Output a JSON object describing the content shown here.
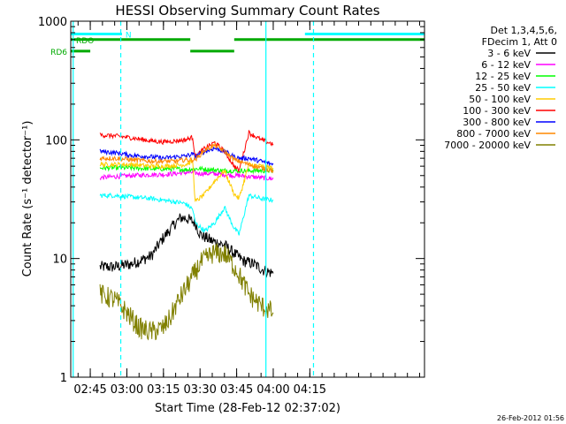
{
  "chart_data": {
    "type": "line",
    "title": "HESSI Observing Summary Count Rates",
    "xlabel": "Start Time (28-Feb-12 02:37:02)",
    "ylabel": "Count Rate (s⁻¹ detector⁻¹)",
    "y_scale": "log",
    "ylim": [
      1,
      1000
    ],
    "xlim_minutes": [
      37,
      182
    ],
    "x_ticks": [
      {
        "label": "02:45",
        "min": 45
      },
      {
        "label": "03:00",
        "min": 60
      },
      {
        "label": "03:15",
        "min": 75
      },
      {
        "label": "03:30",
        "min": 90
      },
      {
        "label": "03:45",
        "min": 105
      },
      {
        "label": "04:00",
        "min": 120
      },
      {
        "label": "04:15",
        "min": 135
      }
    ],
    "y_ticks": [
      {
        "label": "1",
        "value": 1
      },
      {
        "label": "10",
        "value": 10
      },
      {
        "label": "100",
        "value": 100
      },
      {
        "label": "1000",
        "value": 1000
      }
    ],
    "legend_header": [
      "Det 1,3,4,5,6,",
      "FDecim 1, Att 0"
    ],
    "legend_position": "outside-right",
    "series": [
      {
        "name": "3 - 6 keV",
        "color": "#000000",
        "x": [
          49,
          55,
          62,
          70,
          75,
          80,
          82,
          84,
          88,
          90,
          95,
          100,
          104,
          108,
          112,
          116,
          120
        ],
        "y": [
          8.5,
          8.5,
          9,
          10.5,
          15,
          20,
          22,
          22,
          20,
          16,
          14,
          13,
          11,
          9.5,
          9,
          8,
          7.5
        ]
      },
      {
        "name": "6 - 12 keV",
        "color": "#ff00ff",
        "x": [
          49,
          55,
          62,
          70,
          75,
          80,
          84,
          87,
          90,
          95,
          100,
          104,
          106,
          110,
          115,
          120
        ],
        "y": [
          48,
          49,
          50,
          51,
          51,
          52,
          53,
          53,
          52,
          52,
          51,
          50,
          50,
          49,
          48,
          47
        ]
      },
      {
        "name": "12 - 25 keV",
        "color": "#00ff00",
        "x": [
          49,
          55,
          62,
          70,
          75,
          80,
          84,
          87,
          90,
          95,
          100,
          104,
          106,
          110,
          115,
          120
        ],
        "y": [
          58,
          58,
          58,
          57,
          57,
          57,
          56,
          57,
          57,
          56,
          55,
          55,
          55,
          55,
          55,
          55
        ]
      },
      {
        "name": "25 - 50 keV",
        "color": "#00ffff",
        "x": [
          49,
          55,
          62,
          70,
          75,
          80,
          84,
          87,
          88,
          92,
          96,
          100,
          104,
          106,
          110,
          115,
          120
        ],
        "y": [
          34,
          34,
          33,
          32,
          31,
          30,
          29,
          26,
          20,
          17,
          20,
          27,
          18,
          16,
          34,
          32,
          31
        ]
      },
      {
        "name": "50 - 100 keV",
        "color": "#ffcc00",
        "x": [
          49,
          55,
          62,
          70,
          75,
          80,
          84,
          87,
          88,
          92,
          96,
          100,
          104,
          106,
          110,
          115,
          120
        ],
        "y": [
          62,
          62,
          62,
          60,
          60,
          61,
          62,
          66,
          30,
          35,
          45,
          55,
          35,
          32,
          62,
          60,
          58
        ]
      },
      {
        "name": "100 - 300 keV",
        "color": "#ff0000",
        "x": [
          49,
          55,
          62,
          70,
          75,
          80,
          84,
          87,
          88,
          92,
          96,
          100,
          104,
          106,
          110,
          115,
          120
        ],
        "y": [
          110,
          108,
          104,
          98,
          96,
          98,
          100,
          105,
          72,
          85,
          95,
          80,
          60,
          55,
          115,
          100,
          92
        ]
      },
      {
        "name": "300 - 800 keV",
        "color": "#0000ff",
        "x": [
          49,
          55,
          62,
          70,
          75,
          80,
          84,
          87,
          88,
          92,
          96,
          100,
          104,
          106,
          110,
          115,
          120
        ],
        "y": [
          80,
          78,
          74,
          72,
          70,
          72,
          73,
          76,
          72,
          80,
          85,
          80,
          72,
          70,
          70,
          66,
          62
        ]
      },
      {
        "name": "800 - 7000 keV",
        "color": "#ff8800",
        "x": [
          49,
          55,
          62,
          70,
          75,
          80,
          84,
          87,
          88,
          92,
          96,
          100,
          104,
          106,
          110,
          115,
          120
        ],
        "y": [
          70,
          70,
          68,
          66,
          66,
          66,
          68,
          68,
          68,
          82,
          90,
          80,
          68,
          66,
          62,
          58,
          55
        ]
      },
      {
        "name": "7000 - 20000 keV",
        "color": "#808000",
        "x": [
          49,
          55,
          60,
          65,
          70,
          75,
          78,
          80,
          85,
          90,
          95,
          100,
          105,
          110,
          115,
          120
        ],
        "y": [
          5,
          4.5,
          3.5,
          2.6,
          2.4,
          2.6,
          3.2,
          4,
          6,
          9,
          11,
          11,
          8,
          5,
          4,
          3.5
        ]
      }
    ],
    "flags": [
      {
        "name": "RDO",
        "color": "#00aa00",
        "segments": [
          [
            37,
            86
          ],
          [
            86,
            104
          ],
          [
            104,
            182
          ]
        ],
        "levels": [
          700,
          560,
          700
        ]
      },
      {
        "name": "RD6",
        "color": "#00aa00",
        "segments": [
          [
            37,
            45
          ]
        ],
        "levels": [
          560
        ]
      },
      {
        "name": "N",
        "color": "#00ffff",
        "segments": [
          [
            37,
            58
          ],
          [
            133,
            182
          ]
        ],
        "levels": [
          780,
          780
        ]
      }
    ],
    "vertical_lines": [
      {
        "min": 38,
        "color": "#00ffff",
        "style": "solid"
      },
      {
        "min": 57.5,
        "color": "#00ffff",
        "style": "dashed"
      },
      {
        "min": 117,
        "color": "#00ffff",
        "style": "solid"
      },
      {
        "min": 136.5,
        "color": "#00ffff",
        "style": "dashed"
      }
    ],
    "grid": false
  },
  "timestamp": "26-Feb-2012 01:56"
}
